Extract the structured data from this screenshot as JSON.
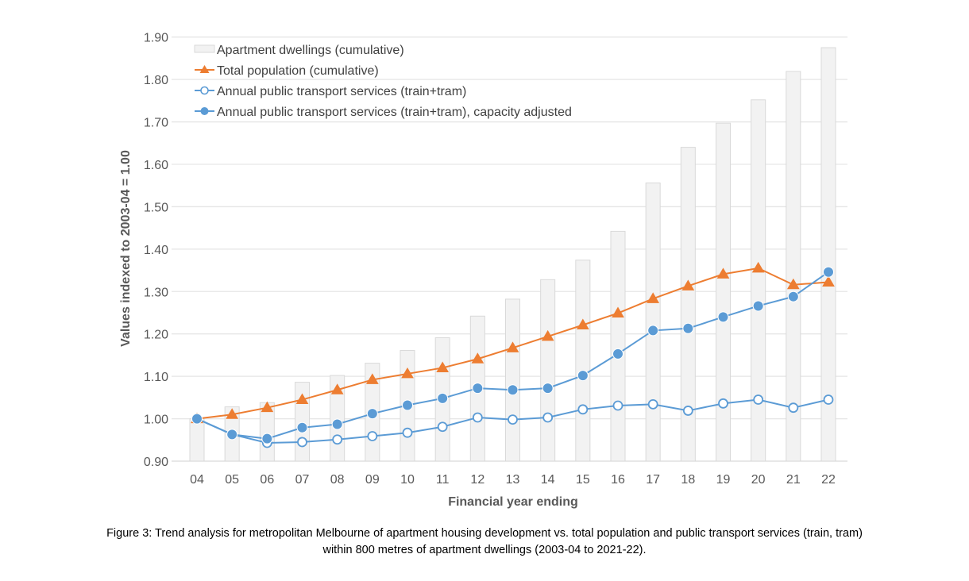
{
  "caption": {
    "line1": "Figure 3: Trend analysis for metropolitan Melbourne of apartment housing development vs. total population and public transport services (train, tram)",
    "line2": "within 800 metres of apartment dwellings (2003-04 to 2021-22)."
  },
  "chart_data": {
    "type": "bar+line",
    "title": "",
    "xlabel": "Financial year ending",
    "ylabel": "Values indexed to 2003-04 = 1.00",
    "ylim": [
      0.9,
      1.9
    ],
    "yticks": [
      "0.90",
      "1.00",
      "1.10",
      "1.20",
      "1.30",
      "1.40",
      "1.50",
      "1.60",
      "1.70",
      "1.80",
      "1.90"
    ],
    "grid": true,
    "legend_position": "top-left",
    "categories": [
      "04",
      "05",
      "06",
      "07",
      "08",
      "09",
      "10",
      "11",
      "12",
      "13",
      "14",
      "15",
      "16",
      "17",
      "18",
      "19",
      "20",
      "21",
      "22"
    ],
    "series": [
      {
        "name": "Apartment dwellings (cumulative)",
        "kind": "bar",
        "color": "#f2f2f2",
        "edge": "#d9d9d9",
        "values": [
          1.0,
          1.028,
          1.038,
          1.086,
          1.102,
          1.131,
          1.161,
          1.191,
          1.242,
          1.282,
          1.328,
          1.374,
          1.442,
          1.556,
          1.64,
          1.697,
          1.752,
          1.819,
          1.875
        ]
      },
      {
        "name": "Total population (cumulative)",
        "kind": "line",
        "marker": "triangle",
        "color": "#ed7d31",
        "values": [
          1.0,
          1.01,
          1.026,
          1.045,
          1.068,
          1.092,
          1.106,
          1.12,
          1.141,
          1.167,
          1.194,
          1.221,
          1.249,
          1.283,
          1.313,
          1.341,
          1.355,
          1.316,
          1.322
        ]
      },
      {
        "name": "Annual public transport services (train+tram)",
        "kind": "line",
        "marker": "open-circle",
        "color": "#5b9bd5",
        "values": [
          1.0,
          0.963,
          0.943,
          0.945,
          0.951,
          0.959,
          0.967,
          0.981,
          1.003,
          0.998,
          1.003,
          1.022,
          1.031,
          1.034,
          1.019,
          1.036,
          1.045,
          1.026,
          1.045
        ]
      },
      {
        "name": "Annual public transport services (train+tram), capacity adjusted",
        "kind": "line",
        "marker": "filled-circle",
        "color": "#5b9bd5",
        "values": [
          1.0,
          0.963,
          0.953,
          0.979,
          0.987,
          1.012,
          1.032,
          1.048,
          1.072,
          1.068,
          1.072,
          1.102,
          1.153,
          1.208,
          1.213,
          1.24,
          1.266,
          1.288,
          1.346
        ]
      }
    ]
  }
}
